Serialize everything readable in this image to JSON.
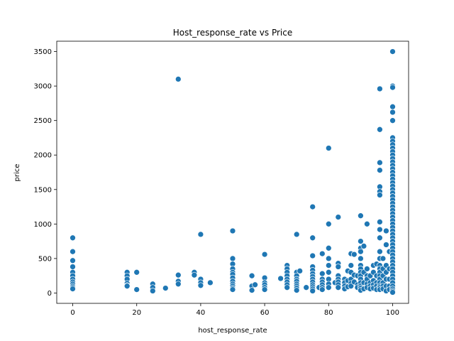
{
  "chart_data": {
    "type": "scatter",
    "title": "Host_response_rate vs Price",
    "xlabel": "host_response_rate",
    "ylabel": "price",
    "xlim": [
      -5,
      105
    ],
    "ylim": [
      -150,
      3650
    ],
    "xticks": [
      0,
      20,
      40,
      60,
      80,
      100
    ],
    "yticks": [
      0,
      500,
      1000,
      1500,
      2000,
      2500,
      3000,
      3500
    ],
    "grid": false,
    "point_color": "#1f77b4",
    "points": [
      [
        0,
        800
      ],
      [
        0,
        600
      ],
      [
        0,
        470
      ],
      [
        0,
        380
      ],
      [
        0,
        300
      ],
      [
        0,
        250
      ],
      [
        0,
        200
      ],
      [
        0,
        160
      ],
      [
        0,
        130
      ],
      [
        0,
        100
      ],
      [
        0,
        80
      ],
      [
        0,
        60
      ],
      [
        17,
        300
      ],
      [
        17,
        250
      ],
      [
        17,
        200
      ],
      [
        17,
        140
      ],
      [
        17,
        110
      ],
      [
        17,
        100
      ],
      [
        20,
        300
      ],
      [
        20,
        50
      ],
      [
        25,
        130
      ],
      [
        25,
        80
      ],
      [
        25,
        30
      ],
      [
        29,
        70
      ],
      [
        33,
        3100
      ],
      [
        33,
        260
      ],
      [
        33,
        170
      ],
      [
        33,
        130
      ],
      [
        38,
        300
      ],
      [
        38,
        260
      ],
      [
        40,
        850
      ],
      [
        40,
        200
      ],
      [
        40,
        150
      ],
      [
        40,
        110
      ],
      [
        43,
        150
      ],
      [
        50,
        900
      ],
      [
        50,
        500
      ],
      [
        50,
        420
      ],
      [
        50,
        350
      ],
      [
        50,
        300
      ],
      [
        50,
        270
      ],
      [
        50,
        220
      ],
      [
        50,
        170
      ],
      [
        50,
        130
      ],
      [
        50,
        100
      ],
      [
        50,
        70
      ],
      [
        50,
        50
      ],
      [
        56,
        250
      ],
      [
        56,
        100
      ],
      [
        56,
        40
      ],
      [
        57,
        120
      ],
      [
        60,
        560
      ],
      [
        60,
        220
      ],
      [
        60,
        150
      ],
      [
        60,
        120
      ],
      [
        60,
        80
      ],
      [
        60,
        50
      ],
      [
        65,
        210
      ],
      [
        67,
        400
      ],
      [
        67,
        350
      ],
      [
        67,
        300
      ],
      [
        67,
        250
      ],
      [
        67,
        200
      ],
      [
        67,
        160
      ],
      [
        67,
        120
      ],
      [
        67,
        80
      ],
      [
        70,
        850
      ],
      [
        70,
        300
      ],
      [
        70,
        250
      ],
      [
        70,
        200
      ],
      [
        70,
        170
      ],
      [
        70,
        130
      ],
      [
        70,
        100
      ],
      [
        70,
        70
      ],
      [
        70,
        40
      ],
      [
        71,
        320
      ],
      [
        73,
        80
      ],
      [
        75,
        1250
      ],
      [
        75,
        800
      ],
      [
        75,
        540
      ],
      [
        75,
        380
      ],
      [
        75,
        330
      ],
      [
        75,
        280
      ],
      [
        75,
        240
      ],
      [
        75,
        200
      ],
      [
        75,
        160
      ],
      [
        75,
        120
      ],
      [
        75,
        90
      ],
      [
        75,
        60
      ],
      [
        75,
        30
      ],
      [
        77,
        80
      ],
      [
        78,
        570
      ],
      [
        78,
        280
      ],
      [
        78,
        200
      ],
      [
        78,
        160
      ],
      [
        78,
        120
      ],
      [
        78,
        80
      ],
      [
        78,
        50
      ],
      [
        80,
        2100
      ],
      [
        80,
        1000
      ],
      [
        80,
        650
      ],
      [
        80,
        500
      ],
      [
        80,
        400
      ],
      [
        80,
        300
      ],
      [
        80,
        200
      ],
      [
        80,
        130
      ],
      [
        80,
        80
      ],
      [
        82,
        150
      ],
      [
        83,
        1100
      ],
      [
        83,
        430
      ],
      [
        83,
        380
      ],
      [
        83,
        250
      ],
      [
        83,
        200
      ],
      [
        83,
        160
      ],
      [
        83,
        120
      ],
      [
        83,
        80
      ],
      [
        85,
        200
      ],
      [
        85,
        150
      ],
      [
        85,
        100
      ],
      [
        85,
        60
      ],
      [
        86,
        320
      ],
      [
        86,
        180
      ],
      [
        86,
        90
      ],
      [
        87,
        570
      ],
      [
        87,
        400
      ],
      [
        87,
        300
      ],
      [
        87,
        200
      ],
      [
        87,
        140
      ],
      [
        87,
        100
      ],
      [
        88,
        560
      ],
      [
        88,
        260
      ],
      [
        88,
        160
      ],
      [
        89,
        250
      ],
      [
        89,
        120
      ],
      [
        89,
        80
      ],
      [
        90,
        1120
      ],
      [
        90,
        750
      ],
      [
        90,
        650
      ],
      [
        90,
        600
      ],
      [
        90,
        500
      ],
      [
        90,
        400
      ],
      [
        90,
        350
      ],
      [
        90,
        300
      ],
      [
        90,
        250
      ],
      [
        90,
        200
      ],
      [
        90,
        150
      ],
      [
        90,
        100
      ],
      [
        90,
        70
      ],
      [
        90,
        40
      ],
      [
        91,
        680
      ],
      [
        91,
        300
      ],
      [
        91,
        150
      ],
      [
        91,
        60
      ],
      [
        92,
        1000
      ],
      [
        92,
        350
      ],
      [
        92,
        250
      ],
      [
        92,
        200
      ],
      [
        92,
        130
      ],
      [
        92,
        80
      ],
      [
        93,
        250
      ],
      [
        93,
        150
      ],
      [
        93,
        100
      ],
      [
        93,
        60
      ],
      [
        94,
        400
      ],
      [
        94,
        300
      ],
      [
        94,
        180
      ],
      [
        94,
        120
      ],
      [
        94,
        70
      ],
      [
        95,
        420
      ],
      [
        95,
        250
      ],
      [
        95,
        150
      ],
      [
        95,
        100
      ],
      [
        95,
        50
      ],
      [
        96,
        2960
      ],
      [
        96,
        2370
      ],
      [
        96,
        1890
      ],
      [
        96,
        1780
      ],
      [
        96,
        1540
      ],
      [
        96,
        1470
      ],
      [
        96,
        1420
      ],
      [
        96,
        1030
      ],
      [
        96,
        920
      ],
      [
        96,
        800
      ],
      [
        96,
        600
      ],
      [
        96,
        500
      ],
      [
        96,
        400
      ],
      [
        96,
        350
      ],
      [
        96,
        300
      ],
      [
        96,
        250
      ],
      [
        96,
        200
      ],
      [
        96,
        150
      ],
      [
        96,
        100
      ],
      [
        96,
        80
      ],
      [
        96,
        50
      ],
      [
        97,
        500
      ],
      [
        97,
        350
      ],
      [
        97,
        250
      ],
      [
        97,
        150
      ],
      [
        97,
        100
      ],
      [
        97,
        60
      ],
      [
        98,
        900
      ],
      [
        98,
        700
      ],
      [
        98,
        400
      ],
      [
        98,
        300
      ],
      [
        98,
        200
      ],
      [
        98,
        100
      ],
      [
        98,
        30
      ],
      [
        99,
        600
      ],
      [
        99,
        350
      ],
      [
        99,
        200
      ],
      [
        99,
        100
      ],
      [
        99,
        50
      ],
      [
        100,
        3500
      ],
      [
        100,
        3000
      ],
      [
        100,
        2980
      ],
      [
        100,
        2700
      ],
      [
        100,
        2620
      ],
      [
        100,
        2500
      ],
      [
        100,
        2250
      ],
      [
        100,
        2200
      ],
      [
        100,
        2150
      ],
      [
        100,
        2100
      ],
      [
        100,
        2050
      ],
      [
        100,
        2000
      ],
      [
        100,
        1950
      ],
      [
        100,
        1900
      ],
      [
        100,
        1850
      ],
      [
        100,
        1800
      ],
      [
        100,
        1750
      ],
      [
        100,
        1700
      ],
      [
        100,
        1650
      ],
      [
        100,
        1600
      ],
      [
        100,
        1550
      ],
      [
        100,
        1500
      ],
      [
        100,
        1450
      ],
      [
        100,
        1400
      ],
      [
        100,
        1350
      ],
      [
        100,
        1300
      ],
      [
        100,
        1250
      ],
      [
        100,
        1200
      ],
      [
        100,
        1150
      ],
      [
        100,
        1100
      ],
      [
        100,
        1050
      ],
      [
        100,
        1000
      ],
      [
        100,
        950
      ],
      [
        100,
        900
      ],
      [
        100,
        850
      ],
      [
        100,
        800
      ],
      [
        100,
        750
      ],
      [
        100,
        700
      ],
      [
        100,
        650
      ],
      [
        100,
        600
      ],
      [
        100,
        550
      ],
      [
        100,
        500
      ],
      [
        100,
        450
      ],
      [
        100,
        400
      ],
      [
        100,
        350
      ],
      [
        100,
        300
      ],
      [
        100,
        250
      ],
      [
        100,
        200
      ],
      [
        100,
        150
      ],
      [
        100,
        100
      ],
      [
        100,
        60
      ],
      [
        100,
        30
      ],
      [
        100,
        10
      ]
    ]
  }
}
